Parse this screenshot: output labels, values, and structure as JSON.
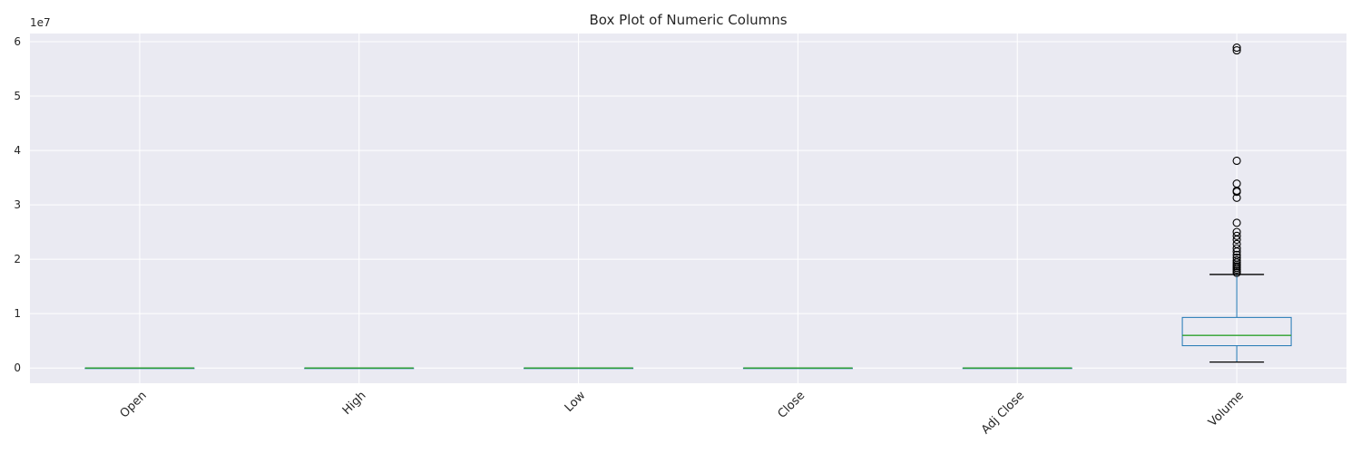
{
  "chart_data": {
    "type": "box",
    "title": "Box Plot of Numeric Columns",
    "xlabel": "",
    "ylabel": "",
    "y_offset_label": "1e7",
    "ylim": [
      -2800000,
      61500000
    ],
    "y_ticks": [
      0,
      10000000,
      20000000,
      30000000,
      40000000,
      50000000,
      60000000
    ],
    "y_tick_labels": [
      "0",
      "1",
      "2",
      "3",
      "4",
      "5",
      "6"
    ],
    "grid": true,
    "categories": [
      "Open",
      "High",
      "Low",
      "Close",
      "Adj Close",
      "Volume"
    ],
    "boxes": [
      {
        "name": "Open",
        "whisker_low": 0,
        "q1": 0,
        "median": 0,
        "q3": 0,
        "whisker_high": 0,
        "outliers": []
      },
      {
        "name": "High",
        "whisker_low": 0,
        "q1": 0,
        "median": 0,
        "q3": 0,
        "whisker_high": 0,
        "outliers": []
      },
      {
        "name": "Low",
        "whisker_low": 0,
        "q1": 0,
        "median": 0,
        "q3": 0,
        "whisker_high": 0,
        "outliers": []
      },
      {
        "name": "Close",
        "whisker_low": 0,
        "q1": 0,
        "median": 0,
        "q3": 0,
        "whisker_high": 0,
        "outliers": []
      },
      {
        "name": "Adj Close",
        "whisker_low": 0,
        "q1": 0,
        "median": 0,
        "q3": 0,
        "whisker_high": 0,
        "outliers": []
      },
      {
        "name": "Volume",
        "whisker_low": 1100000,
        "q1": 4100000,
        "median": 6000000,
        "q3": 9300000,
        "whisker_high": 17200000,
        "outliers": [
          58900000,
          58400000,
          38100000,
          33900000,
          32600000,
          32400000,
          31300000,
          26700000,
          25000000,
          24300000,
          23600000,
          22800000,
          22000000,
          21400000,
          20800000,
          20300000,
          19800000,
          19400000,
          19000000,
          18700000,
          18400000,
          18100000,
          17800000,
          17500000
        ]
      }
    ],
    "colors": {
      "background": "#eaeaf2",
      "grid": "#ffffff",
      "box": "#1f77b4",
      "median": "#2ca02c",
      "whisker_cap": "#000000",
      "outlier": "#000000"
    }
  }
}
